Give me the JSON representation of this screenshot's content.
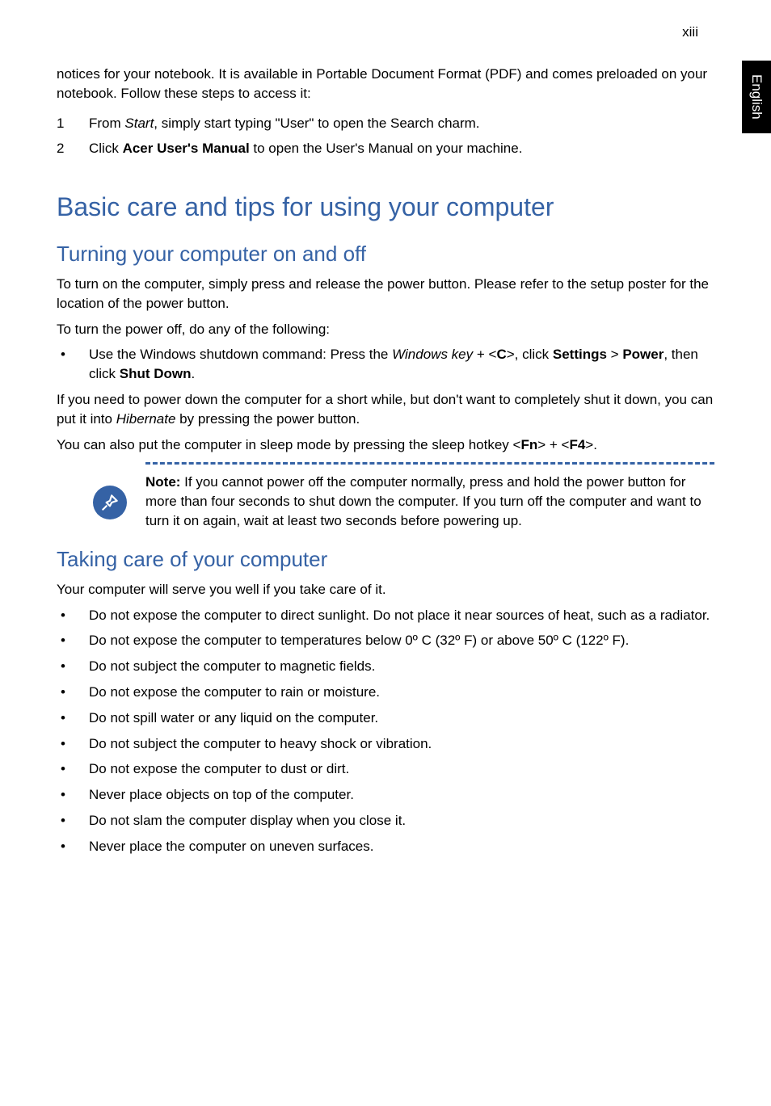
{
  "page_number": "xiii",
  "side_tab": "English",
  "intro_text": "notices for your notebook. It is available in Portable Document Format (PDF) and comes preloaded on your notebook. Follow these steps to access it:",
  "steps": [
    {
      "num": "1",
      "before": "From ",
      "italic": "Start",
      "after": ", simply start typing \"User\" to open the Search charm."
    },
    {
      "num": "2",
      "before": "Click ",
      "bold": "Acer User's Manual",
      "after": " to open the User's Manual on your machine."
    }
  ],
  "section_title": "Basic care and tips for using your computer",
  "sub1_title": "Turning your computer on and off",
  "sub1_p1": "To turn on the computer, simply press and release the power button. Please refer to the setup poster for the location of the power button.",
  "sub1_p2": "To turn the power off, do any of the following:",
  "sub1_bullet_pre": "Use the Windows shutdown command: Press the ",
  "sub1_bullet_italic": "Windows key",
  "sub1_bullet_mid1": " + <",
  "sub1_bullet_bold1": "C",
  "sub1_bullet_mid2": ">, click ",
  "sub1_bullet_bold2": "Settings",
  "sub1_bullet_mid3": " > ",
  "sub1_bullet_bold3": "Power",
  "sub1_bullet_mid4": ", then click ",
  "sub1_bullet_bold4": "Shut Down",
  "sub1_bullet_end": ".",
  "sub1_p3_pre": "If you need to power down the computer for a short while, but don't want to completely shut it down, you can put it into ",
  "sub1_p3_italic": "Hibernate",
  "sub1_p3_after": " by pressing the power button.",
  "sub1_p4_pre": "You can also put the computer in sleep mode by pressing the sleep hotkey <",
  "sub1_p4_b1": "Fn",
  "sub1_p4_mid": "> + <",
  "sub1_p4_b2": "F4",
  "sub1_p4_end": ">.",
  "note_label": "Note:",
  "note_text": " If you cannot power off the computer normally, press and hold the power button for more than four seconds to shut down the computer. If you turn off the computer and want to turn it on again, wait at least two seconds before powering up.",
  "sub2_title": "Taking care of your computer",
  "sub2_p1": "Your computer will serve you well if you take care of it.",
  "sub2_bullets": [
    "Do not expose the computer to direct sunlight. Do not place it near sources of heat, such as a radiator.",
    "Do not expose the computer to temperatures below 0º C (32º F) or above 50º C (122º F).",
    "Do not subject the computer to magnetic fields.",
    "Do not expose the computer to rain or moisture.",
    "Do not spill water or any liquid on the computer.",
    "Do not subject the computer to heavy shock or vibration.",
    "Do not expose the computer to dust or dirt.",
    "Never place objects on top of the computer.",
    "Do not slam the computer display when you close it.",
    "Never place the computer on uneven surfaces."
  ],
  "colors": {
    "heading": "#3562a5",
    "text": "#000000",
    "background": "#ffffff"
  }
}
